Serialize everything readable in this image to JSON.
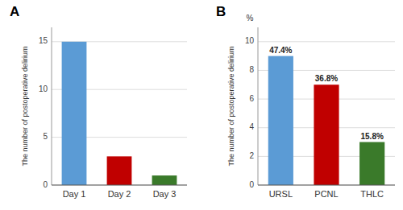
{
  "chart_data": [
    {
      "type": "bar",
      "title": "A",
      "categories": [
        "Day 1",
        "Day 2",
        "Day 3"
      ],
      "values": [
        15,
        3,
        1
      ],
      "colors": [
        "#5B9BD5",
        "#C00000",
        "#3A7A2A"
      ],
      "ylabel": "The number of postoperative delirium",
      "ylim": [
        0,
        16.5
      ],
      "yticks": [
        0,
        5,
        10,
        15
      ],
      "grid": true
    },
    {
      "type": "bar",
      "title": "B",
      "categories": [
        "URSL",
        "PCNL",
        "THLC"
      ],
      "values": [
        9.0,
        7.0,
        3.0
      ],
      "annotations": [
        "47.4%",
        "36.8%",
        "15.8%"
      ],
      "colors": [
        "#5B9BD5",
        "#C00000",
        "#3A7A2A"
      ],
      "ylabel": "The number of postoperative delirium",
      "yunit": "%",
      "ylim": [
        0,
        11.0
      ],
      "yticks": [
        0,
        2,
        4,
        6,
        8,
        10
      ],
      "grid": true
    }
  ]
}
